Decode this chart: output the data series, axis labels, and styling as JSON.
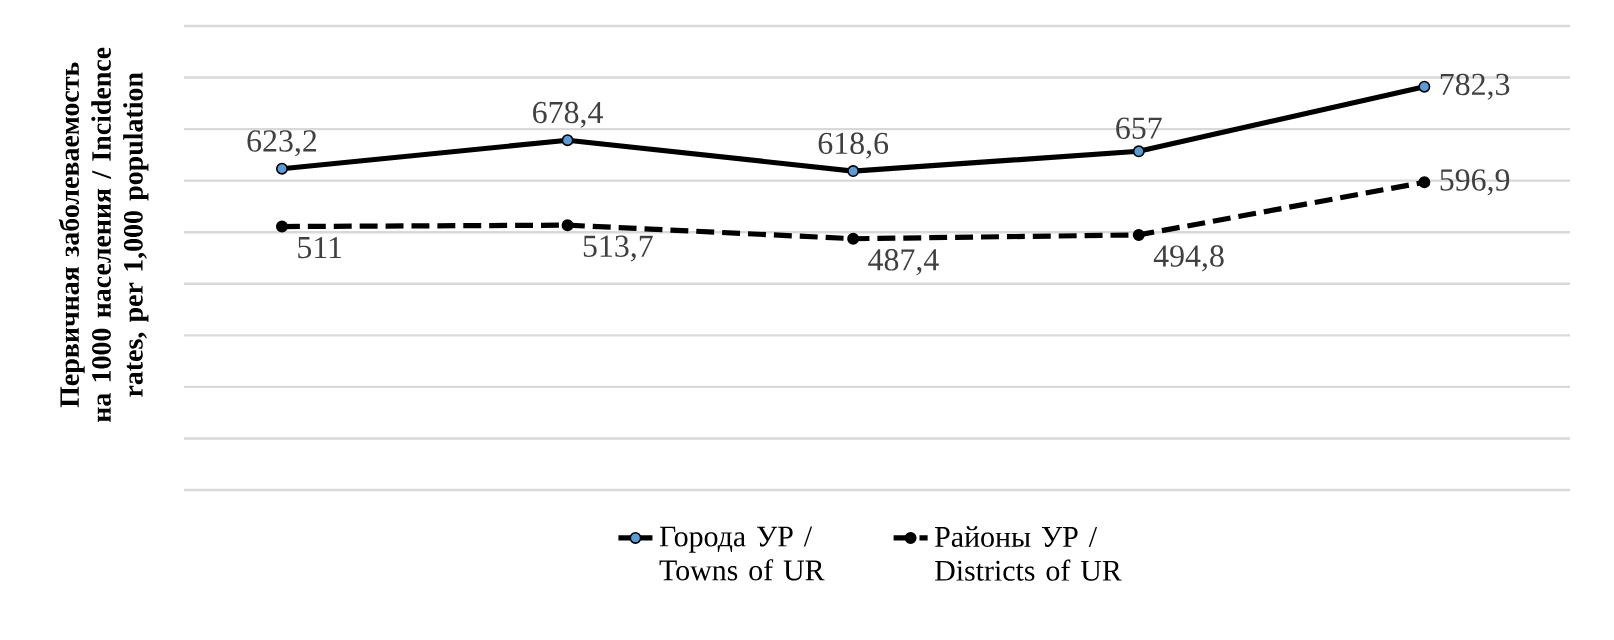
{
  "chart_data": {
    "type": "line",
    "ylabel": "Первичная заболеваемость на 1000 населения / Incidence rates, per 1,000 population",
    "categories": [
      null,
      null,
      null,
      null,
      null
    ],
    "series": [
      {
        "name": "Города УР / Towns of UR",
        "color": "#000000",
        "line_style": "solid",
        "values": [
          623.2,
          678.4,
          618.6,
          657,
          782.3
        ],
        "value_labels": [
          "623,2",
          "678,4",
          "618,6",
          "657",
          "782,3"
        ]
      },
      {
        "name": "Районы УР / Districts of UR",
        "color": "#000000",
        "line_style": "dashed",
        "values": [
          511,
          513.7,
          487.4,
          494.8,
          596.9
        ],
        "value_labels": [
          "511",
          "513,7",
          "487,4",
          "494,8",
          "596,9"
        ]
      }
    ],
    "ylim": [
      0,
      900
    ],
    "yticks": [
      {
        "value": 0,
        "label": null
      },
      {
        "value": 100,
        "label": null
      },
      {
        "value": 200,
        "label": null
      },
      {
        "value": 300,
        "label": null
      },
      {
        "value": 400,
        "label": null
      },
      {
        "value": 500,
        "label": null
      },
      {
        "value": 600,
        "label": null
      },
      {
        "value": 700,
        "label": null
      },
      {
        "value": 800,
        "label": null
      },
      {
        "value": 900,
        "label": null
      }
    ],
    "grid": "y",
    "legend": "bottom",
    "marker": "circle"
  }
}
